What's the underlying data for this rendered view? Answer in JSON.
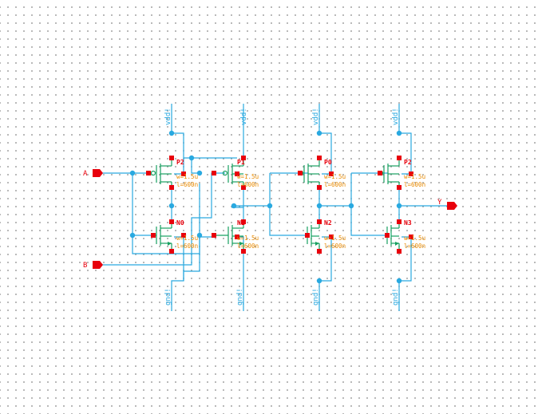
{
  "schematic": {
    "pins": {
      "A": "A",
      "B": "B",
      "Y": "Y"
    },
    "supply_labels": [
      "vdd!",
      "vdd!",
      "vdd!",
      "vdd!"
    ],
    "ground_labels": [
      "gnd!",
      "gnd!",
      "gnd!",
      "gnd!"
    ],
    "instances": [
      {
        "name": "P2",
        "w": "w=1.5u",
        "l": "l=600n"
      },
      {
        "name": "P1",
        "w": "w=1.5u",
        "l": "l=600n"
      },
      {
        "name": "P0",
        "w": "w=1.5u",
        "l": "l=600n"
      },
      {
        "name": "P2",
        "w": "w=1.5u",
        "l": "l=600n"
      },
      {
        "name": "N0",
        "w": "w=1.5u",
        "l": "l=600n"
      },
      {
        "name": "N1",
        "w": "w=1.5u",
        "l": "l=600n"
      },
      {
        "name": "N2",
        "w": "w=1.5u",
        "l": "l=600n"
      },
      {
        "name": "N3",
        "w": "w=1.5u",
        "l": "l=600n"
      }
    ],
    "colors": {
      "wire": "#29a9e0",
      "device": "#18a060",
      "pin": "#e8000c",
      "parameter": "#e88a00"
    }
  }
}
